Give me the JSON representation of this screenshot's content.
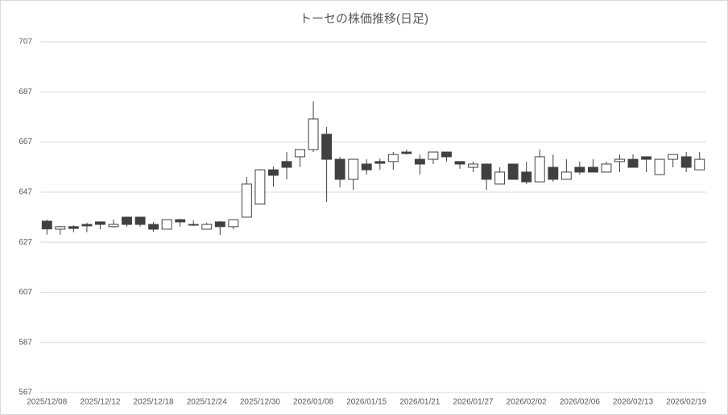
{
  "chart_data": {
    "type": "candlestick",
    "title": "トーセの株価推移(日足)",
    "categories": [
      "2025/12/08",
      null,
      null,
      null,
      "2025/12/12",
      null,
      null,
      null,
      "2025/12/18",
      null,
      null,
      null,
      "2025/12/24",
      null,
      null,
      null,
      "2025/12/30",
      null,
      null,
      null,
      "2026/01/08",
      null,
      null,
      null,
      "2026/01/15",
      null,
      null,
      null,
      "2026/01/21",
      null,
      null,
      null,
      "2026/01/27",
      null,
      null,
      null,
      "2026/02/02",
      null,
      null,
      null,
      "2026/02/06",
      null,
      null,
      null,
      "2026/02/13",
      null,
      null,
      null,
      "2026/02/19",
      null
    ],
    "open": [
      635.4,
      632.2,
      633.2,
      634.1,
      635.1,
      633.2,
      637,
      637,
      634.1,
      632.2,
      636,
      634.1,
      632.2,
      635.1,
      633.2,
      637,
      642.2,
      655.9,
      659.2,
      661.1,
      664,
      670.1,
      660.1,
      652.1,
      658.2,
      659.2,
      659.2,
      663,
      660.1,
      660.1,
      663,
      659.2,
      656.9,
      658.2,
      650.2,
      658.2,
      655,
      651.1,
      656.9,
      652.1,
      656.9,
      656.9,
      655,
      659.2,
      660.1,
      661.1,
      654,
      660.1,
      661.1,
      655.9
    ],
    "high": [
      636,
      633.5,
      633.8,
      634.8,
      635.3,
      636,
      637,
      637.2,
      635.1,
      636,
      636.3,
      635.7,
      634.8,
      635.4,
      636,
      653.1,
      656.2,
      657.2,
      663,
      664,
      683.2,
      673,
      661.1,
      660.1,
      660.1,
      660.4,
      663,
      664,
      662,
      663,
      663,
      659.2,
      659.2,
      658.2,
      656.9,
      658.2,
      659.2,
      664,
      662,
      660.1,
      659.2,
      660.1,
      659.2,
      662,
      662,
      661.1,
      660.1,
      662,
      663,
      663
    ],
    "low": [
      630,
      630,
      631,
      631,
      632.2,
      632.8,
      633.2,
      633.2,
      631.2,
      632.2,
      633.2,
      633.5,
      632.2,
      629.9,
      632.2,
      637,
      642,
      649.2,
      652.1,
      657,
      663,
      643.1,
      648.9,
      647.9,
      654,
      655.9,
      655.9,
      662,
      654,
      658.2,
      659.2,
      656.3,
      655,
      647.9,
      650.2,
      652,
      650.2,
      651,
      651.1,
      652.1,
      654,
      655,
      655,
      655,
      656.9,
      655,
      654,
      656.9,
      655,
      655.9
    ],
    "close": [
      632.3,
      633.2,
      632.5,
      633.5,
      634.1,
      634.1,
      634.1,
      634.1,
      632.2,
      636,
      635.1,
      633.8,
      634.1,
      633.2,
      636,
      650.2,
      655.9,
      653.7,
      656.9,
      664,
      676.2,
      660.1,
      652.1,
      660.1,
      655.9,
      658.5,
      662,
      662.4,
      658.2,
      663,
      661.1,
      658.2,
      658.2,
      652.1,
      655,
      652.1,
      651.1,
      661.1,
      652.1,
      655,
      655,
      655,
      658.2,
      660.1,
      656.9,
      660.1,
      660.1,
      662,
      656.9,
      660.1
    ],
    "up_color": "#ffffff",
    "down_color": "#404040",
    "line_color": "#404040",
    "ylim": [
      567,
      707
    ],
    "yticks": [
      567,
      587,
      607,
      627,
      647,
      667,
      687,
      707
    ],
    "grid": true
  }
}
